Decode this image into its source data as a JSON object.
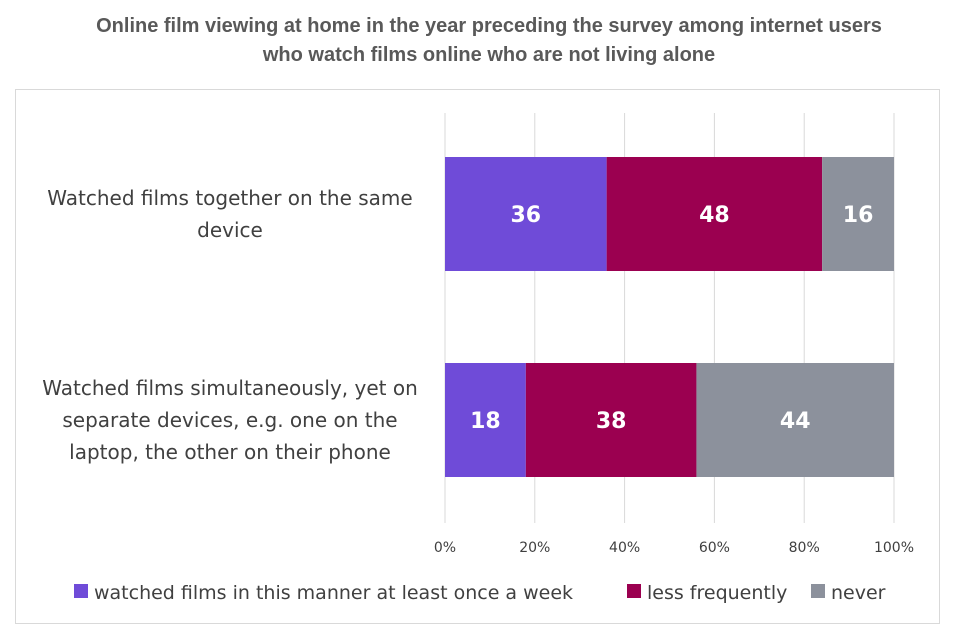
{
  "chart_data": {
    "type": "bar",
    "orientation": "horizontal",
    "stacked": true,
    "title_lines": [
      "Online film viewing at home in the year preceding the survey among internet users",
      "who watch films online who are not living alone"
    ],
    "categories": [
      [
        "Watched films together on the same",
        "device"
      ],
      [
        "Watched films simultaneously, yet on",
        "separate devices, e.g. one on the",
        "laptop, the other on their phone"
      ]
    ],
    "series": [
      {
        "name": "watched films in this manner at least once a week",
        "color": "#6f4bd8",
        "values": [
          36,
          18
        ]
      },
      {
        "name": "less frequently",
        "color": "#9b0050",
        "values": [
          48,
          38
        ]
      },
      {
        "name": "never",
        "color": "#8c919c",
        "values": [
          16,
          44
        ]
      }
    ],
    "xlim": [
      0,
      100
    ],
    "ticks": [
      "0%",
      "20%",
      "40%",
      "60%",
      "80%",
      "100%"
    ],
    "grid": true,
    "legend_position": "bottom"
  }
}
